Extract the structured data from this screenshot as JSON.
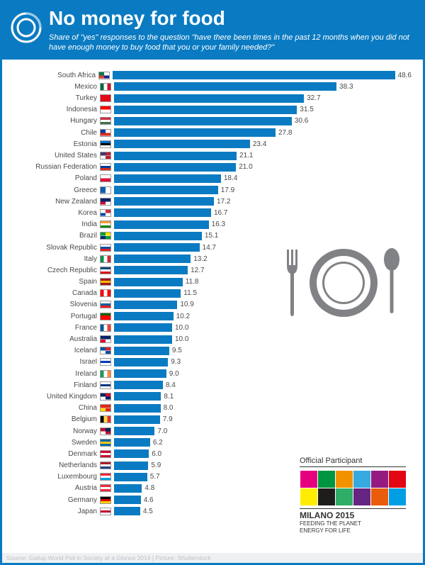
{
  "header": {
    "title": "No money for food",
    "subtitle": "Share of \"yes\" responses to the question \"have there been times in the past 12 months when you did not have enough money to buy food that you or your family needed?\""
  },
  "chart": {
    "type": "bar",
    "bar_color": "#0a7bc2",
    "max_value": 50,
    "bar_area_width": 410,
    "background_color": "#ffffff",
    "label_color": "#4a4a4a",
    "label_fontsize": 10,
    "value_fontsize": 10,
    "data": [
      {
        "country": "South Africa",
        "value": 48.6,
        "flag": [
          "#007a4d",
          "#ffffff",
          "#de3831",
          "#002395",
          "#ffb612",
          "#000000"
        ]
      },
      {
        "country": "Mexico",
        "value": 38.3,
        "flag": [
          "#006847",
          "#ffffff",
          "#ce1126"
        ]
      },
      {
        "country": "Turkey",
        "value": 32.7,
        "flag": [
          "#e30a17",
          "#e30a17",
          "#e30a17"
        ]
      },
      {
        "country": "Indonesia",
        "value": 31.5,
        "flag": [
          "#ff0000",
          "#ffffff"
        ]
      },
      {
        "country": "Hungary",
        "value": 30.6,
        "flag": [
          "#cd2a3e",
          "#ffffff",
          "#436f4d"
        ]
      },
      {
        "country": "Chile",
        "value": 27.8,
        "flag": [
          "#0039a6",
          "#ffffff",
          "#d52b1e",
          "#d52b1e"
        ]
      },
      {
        "country": "Estonia",
        "value": 23.4,
        "flag": [
          "#0072ce",
          "#000000",
          "#ffffff"
        ]
      },
      {
        "country": "United States",
        "value": 21.1,
        "flag": [
          "#3c3b6e",
          "#b22234",
          "#ffffff",
          "#b22234"
        ]
      },
      {
        "country": "Russian Federation",
        "value": 21.0,
        "flag": [
          "#ffffff",
          "#0039a6",
          "#d52b1e"
        ]
      },
      {
        "country": "Poland",
        "value": 18.4,
        "flag": [
          "#ffffff",
          "#dc143c"
        ]
      },
      {
        "country": "Greece",
        "value": 17.9,
        "flag": [
          "#0d5eaf",
          "#ffffff",
          "#0d5eaf",
          "#ffffff"
        ]
      },
      {
        "country": "New Zealand",
        "value": 17.2,
        "flag": [
          "#012169",
          "#012169",
          "#c8102e",
          "#ffffff"
        ]
      },
      {
        "country": "Korea",
        "value": 16.7,
        "flag": [
          "#ffffff",
          "#cd2e3a",
          "#0047a0",
          "#ffffff"
        ]
      },
      {
        "country": "India",
        "value": 16.3,
        "flag": [
          "#ff9933",
          "#ffffff",
          "#138808"
        ]
      },
      {
        "country": "Brazil",
        "value": 15.1,
        "flag": [
          "#009c3b",
          "#ffdf00",
          "#002776",
          "#009c3b"
        ]
      },
      {
        "country": "Slovak Republic",
        "value": 14.7,
        "flag": [
          "#ffffff",
          "#0b4ea2",
          "#ee1c25"
        ]
      },
      {
        "country": "Italy",
        "value": 13.2,
        "flag": [
          "#009246",
          "#ffffff",
          "#ce2b37"
        ]
      },
      {
        "country": "Czech Republic",
        "value": 12.7,
        "flag": [
          "#11457e",
          "#ffffff",
          "#d7141a"
        ]
      },
      {
        "country": "Spain",
        "value": 11.8,
        "flag": [
          "#aa151b",
          "#f1bf00",
          "#aa151b"
        ]
      },
      {
        "country": "Canada",
        "value": 11.5,
        "flag": [
          "#ff0000",
          "#ffffff",
          "#ff0000"
        ]
      },
      {
        "country": "Slovenia",
        "value": 10.9,
        "flag": [
          "#ffffff",
          "#005da4",
          "#ed1c24"
        ]
      },
      {
        "country": "Portugal",
        "value": 10.2,
        "flag": [
          "#006600",
          "#ff0000",
          "#ff0000"
        ]
      },
      {
        "country": "France",
        "value": 10.0,
        "flag": [
          "#0055a4",
          "#ffffff",
          "#ef4135"
        ]
      },
      {
        "country": "Australia",
        "value": 10.0,
        "flag": [
          "#012169",
          "#012169",
          "#e4002b",
          "#ffffff"
        ]
      },
      {
        "country": "Iceland",
        "value": 9.5,
        "flag": [
          "#02529c",
          "#dc1e35",
          "#ffffff",
          "#02529c"
        ]
      },
      {
        "country": "Israel",
        "value": 9.3,
        "flag": [
          "#ffffff",
          "#0038b8",
          "#ffffff"
        ]
      },
      {
        "country": "Ireland",
        "value": 9.0,
        "flag": [
          "#169b62",
          "#ffffff",
          "#ff883e"
        ]
      },
      {
        "country": "Finland",
        "value": 8.4,
        "flag": [
          "#ffffff",
          "#003580",
          "#ffffff"
        ]
      },
      {
        "country": "United Kingdom",
        "value": 8.1,
        "flag": [
          "#012169",
          "#c8102e",
          "#ffffff",
          "#012169"
        ]
      },
      {
        "country": "China",
        "value": 8.0,
        "flag": [
          "#de2910",
          "#de2910",
          "#ffde00",
          "#de2910"
        ]
      },
      {
        "country": "Belgium",
        "value": 7.9,
        "flag": [
          "#000000",
          "#fae042",
          "#ed2939"
        ]
      },
      {
        "country": "Norway",
        "value": 7.0,
        "flag": [
          "#ba0c2f",
          "#00205b",
          "#ffffff",
          "#ba0c2f"
        ]
      },
      {
        "country": "Sweden",
        "value": 6.2,
        "flag": [
          "#006aa7",
          "#fecc02",
          "#006aa7"
        ]
      },
      {
        "country": "Denmark",
        "value": 6.0,
        "flag": [
          "#c8102e",
          "#ffffff",
          "#c8102e"
        ]
      },
      {
        "country": "Netherlands",
        "value": 5.9,
        "flag": [
          "#ae1c28",
          "#ffffff",
          "#21468b"
        ]
      },
      {
        "country": "Luxembourg",
        "value": 5.7,
        "flag": [
          "#ed2939",
          "#ffffff",
          "#00a1de"
        ]
      },
      {
        "country": "Austria",
        "value": 4.8,
        "flag": [
          "#ed2939",
          "#ffffff",
          "#ed2939"
        ]
      },
      {
        "country": "Germany",
        "value": 4.6,
        "flag": [
          "#000000",
          "#dd0000",
          "#ffce00"
        ]
      },
      {
        "country": "Japan",
        "value": 4.5,
        "flag": [
          "#ffffff",
          "#bc002d",
          "#ffffff"
        ]
      }
    ]
  },
  "expo": {
    "top": "Official Participant",
    "milano": "MILANO 2015",
    "tag1": "FEEDING THE PLANET",
    "tag2": "ENERGY FOR LIFE",
    "colors": [
      "#e6007e",
      "#009640",
      "#f39200",
      "#36a9e1",
      "#951b81",
      "#e30613",
      "#ffed00",
      "#1d1d1b",
      "#2fac66",
      "#662483",
      "#ea5b0c",
      "#009fe3"
    ]
  },
  "source": "Source: Gallup World Poll in Society at a Glance 2014 | Picture: Shutterstock",
  "icons": {
    "plate_color": "#808285"
  }
}
